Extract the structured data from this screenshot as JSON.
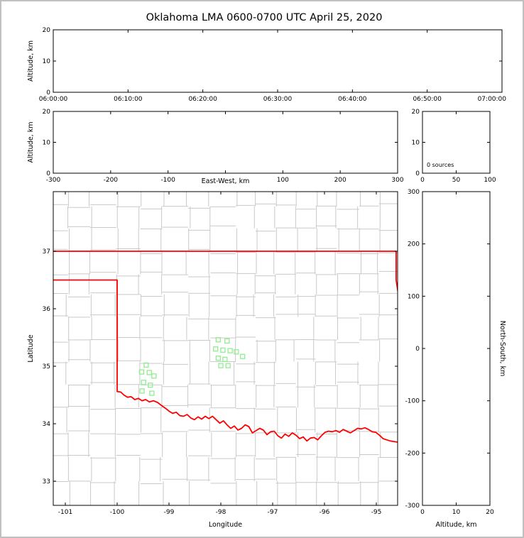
{
  "title": "Oklahoma LMA 0600-0700 UTC April 25, 2020",
  "colors": {
    "state_border": "#ff0000",
    "county_lines": "#c9c9c9",
    "station_marker": "#90ee90",
    "axis": "#000000",
    "background": "#ffffff",
    "page_border": "#c0c0c0"
  },
  "chart_data": [
    {
      "id": "time_height_panel",
      "type": "scatter",
      "xlabel": "",
      "ylabel": "Altitude, km",
      "xlim_minutes": [
        0,
        60
      ],
      "x_ticks_minutes": [
        0,
        10,
        20,
        30,
        40,
        50,
        60
      ],
      "x_tick_labels": [
        "06:00:00",
        "06:10:00",
        "06:20:00",
        "06:30:00",
        "06:40:00",
        "06:50:00",
        "07:00:00"
      ],
      "ylim": [
        0,
        20
      ],
      "y_ticks": [
        0,
        10,
        20
      ],
      "y_tick_labels": [
        "0",
        "10",
        "20"
      ],
      "points": []
    },
    {
      "id": "ew_height_panel",
      "type": "scatter",
      "xlabel": "East-West, km",
      "ylabel": "Altitude, km",
      "xlim": [
        -300,
        300
      ],
      "x_ticks": [
        -300,
        -200,
        -100,
        0,
        100,
        200,
        300
      ],
      "x_tick_labels": [
        "-300",
        "-200",
        "-100",
        "",
        "100",
        "200",
        "300"
      ],
      "ylim": [
        0,
        20
      ],
      "y_ticks": [
        0,
        10,
        20
      ],
      "y_tick_labels": [
        "0",
        "10",
        "20"
      ],
      "points": []
    },
    {
      "id": "source_histogram_panel",
      "type": "line",
      "annotation": "0 sources",
      "xlim": [
        0,
        100
      ],
      "x_ticks": [
        0,
        50,
        100
      ],
      "x_tick_labels": [
        "0",
        "50",
        "100"
      ],
      "ylim": [
        0,
        20
      ],
      "y_ticks": [
        0,
        10,
        20
      ],
      "y_tick_labels": [
        "0",
        "10",
        "20"
      ],
      "points": []
    },
    {
      "id": "map_panel",
      "type": "scatter",
      "xlabel": "Longitude",
      "ylabel": "Latitude",
      "xlim": [
        -101.233,
        -94.589
      ],
      "ylim": [
        32.58,
        38.037
      ],
      "x_ticks": [
        -101,
        -100,
        -99,
        -98,
        -97,
        -96,
        -95
      ],
      "x_tick_labels": [
        "-101",
        "-100",
        "-99",
        "-98",
        "-97",
        "-96",
        "-95"
      ],
      "y_ticks": [
        33,
        34,
        35,
        36,
        37
      ],
      "y_tick_labels": [
        "33",
        "34",
        "35",
        "36",
        "37"
      ],
      "station_markers": [
        [
          -98.05,
          35.46
        ],
        [
          -97.88,
          35.44
        ],
        [
          -98.1,
          35.3
        ],
        [
          -97.96,
          35.28
        ],
        [
          -97.82,
          35.27
        ],
        [
          -97.7,
          35.25
        ],
        [
          -97.58,
          35.17
        ],
        [
          -98.05,
          35.14
        ],
        [
          -97.92,
          35.12
        ],
        [
          -98.0,
          35.01
        ],
        [
          -97.86,
          35.01
        ],
        [
          -99.44,
          35.02
        ],
        [
          -99.53,
          34.9
        ],
        [
          -99.38,
          34.89
        ],
        [
          -99.29,
          34.83
        ],
        [
          -99.49,
          34.72
        ],
        [
          -99.36,
          34.67
        ],
        [
          -99.52,
          34.57
        ],
        [
          -99.33,
          34.53
        ]
      ],
      "state_border_lines": [
        [
          [
            -101.233,
            37.0
          ],
          [
            -94.618,
            37.0
          ]
        ],
        [
          [
            -94.618,
            37.0
          ],
          [
            -94.618,
            36.5
          ],
          [
            -94.43,
            35.39
          ]
        ],
        [
          [
            -101.233,
            36.5
          ],
          [
            -100.0,
            36.5
          ],
          [
            -100.0,
            34.56
          ],
          [
            -99.93,
            34.55
          ],
          [
            -99.87,
            34.5
          ],
          [
            -99.8,
            34.46
          ],
          [
            -99.73,
            34.47
          ],
          [
            -99.66,
            34.42
          ],
          [
            -99.59,
            34.44
          ],
          [
            -99.52,
            34.4
          ],
          [
            -99.45,
            34.42
          ],
          [
            -99.38,
            34.38
          ],
          [
            -99.3,
            34.4
          ],
          [
            -99.22,
            34.37
          ],
          [
            -99.15,
            34.32
          ],
          [
            -99.07,
            34.27
          ],
          [
            -99.0,
            34.22
          ],
          [
            -98.93,
            34.18
          ],
          [
            -98.86,
            34.2
          ],
          [
            -98.79,
            34.14
          ],
          [
            -98.72,
            34.13
          ],
          [
            -98.65,
            34.16
          ],
          [
            -98.58,
            34.1
          ],
          [
            -98.51,
            34.07
          ],
          [
            -98.44,
            34.12
          ],
          [
            -98.37,
            34.08
          ],
          [
            -98.3,
            34.13
          ],
          [
            -98.23,
            34.09
          ],
          [
            -98.16,
            34.13
          ],
          [
            -98.09,
            34.07
          ],
          [
            -98.02,
            34.01
          ],
          [
            -97.95,
            34.05
          ],
          [
            -97.88,
            33.98
          ],
          [
            -97.81,
            33.92
          ],
          [
            -97.74,
            33.96
          ],
          [
            -97.67,
            33.89
          ],
          [
            -97.6,
            33.92
          ],
          [
            -97.53,
            33.98
          ],
          [
            -97.46,
            33.95
          ],
          [
            -97.39,
            33.84
          ],
          [
            -97.32,
            33.88
          ],
          [
            -97.25,
            33.92
          ],
          [
            -97.18,
            33.89
          ],
          [
            -97.11,
            33.81
          ],
          [
            -97.04,
            33.86
          ],
          [
            -96.97,
            33.87
          ],
          [
            -96.9,
            33.79
          ],
          [
            -96.83,
            33.75
          ],
          [
            -96.76,
            33.82
          ],
          [
            -96.69,
            33.78
          ],
          [
            -96.62,
            33.84
          ],
          [
            -96.55,
            33.8
          ],
          [
            -96.48,
            33.74
          ],
          [
            -96.41,
            33.77
          ],
          [
            -96.34,
            33.7
          ],
          [
            -96.27,
            33.75
          ],
          [
            -96.2,
            33.76
          ],
          [
            -96.13,
            33.72
          ],
          [
            -96.06,
            33.79
          ],
          [
            -95.99,
            33.85
          ],
          [
            -95.92,
            33.87
          ],
          [
            -95.85,
            33.86
          ],
          [
            -95.78,
            33.88
          ],
          [
            -95.71,
            33.85
          ],
          [
            -95.64,
            33.9
          ],
          [
            -95.57,
            33.87
          ],
          [
            -95.5,
            33.84
          ],
          [
            -95.43,
            33.88
          ],
          [
            -95.36,
            33.92
          ],
          [
            -95.29,
            33.91
          ],
          [
            -95.22,
            33.93
          ],
          [
            -95.15,
            33.9
          ],
          [
            -95.08,
            33.86
          ],
          [
            -95.01,
            33.85
          ],
          [
            -94.94,
            33.8
          ],
          [
            -94.87,
            33.74
          ],
          [
            -94.8,
            33.72
          ],
          [
            -94.73,
            33.7
          ],
          [
            -94.66,
            33.69
          ],
          [
            -94.59,
            33.68
          ]
        ]
      ],
      "county_grid": {
        "lon_lines": [
          -100.95,
          -100.52,
          -100.02,
          -99.55,
          -99.13,
          -98.63,
          -98.2,
          -97.71,
          -97.33,
          -96.94,
          -96.55,
          -96.17,
          -95.76,
          -95.33,
          -94.95
        ],
        "lat_lines": [
          33.0,
          33.42,
          33.85,
          34.28,
          34.68,
          35.08,
          35.46,
          35.86,
          36.25,
          36.6,
          37.0,
          37.4,
          37.78
        ]
      }
    },
    {
      "id": "ns_height_panel",
      "type": "scatter",
      "xlabel": "Altitude, km",
      "ylabel": "North-South, km",
      "xlim": [
        0,
        20
      ],
      "x_ticks": [
        0,
        10,
        20
      ],
      "x_tick_labels": [
        "0",
        "10",
        "20"
      ],
      "ylim": [
        -300,
        300
      ],
      "y_ticks": [
        -300,
        -200,
        -100,
        0,
        100,
        200,
        300
      ],
      "y_tick_labels": [
        "-300",
        "-200",
        "-100",
        "0",
        "100",
        "200",
        "300"
      ],
      "points": []
    }
  ]
}
